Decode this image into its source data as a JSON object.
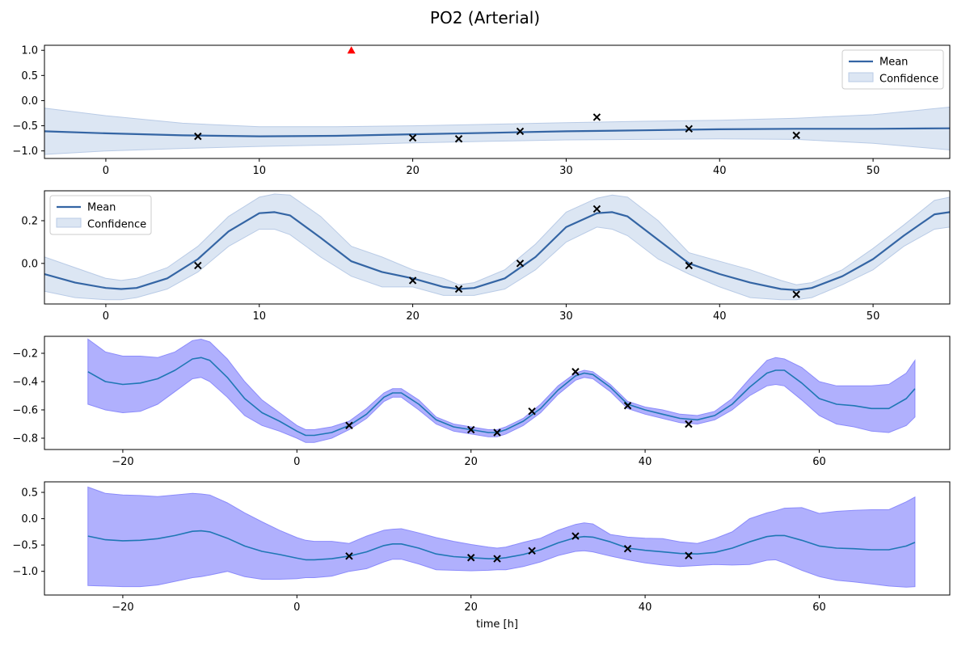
{
  "figure": {
    "title": "PO2 (Arterial)"
  },
  "chart_data": [
    {
      "type": "line",
      "ylim": [
        -1.15,
        1.1
      ],
      "xlim": [
        -4,
        55
      ],
      "xticks": [
        0,
        10,
        20,
        30,
        40,
        50
      ],
      "yticks": [
        1.0,
        0.5,
        0.0,
        -0.5,
        -1.0
      ],
      "ytick_format": 1,
      "legend": {
        "position": "top-right",
        "entries": [
          "Mean",
          "Confidence"
        ]
      },
      "mean_color": "#3465a4",
      "band_color": "#dce6f3",
      "band_edge": "#b9cbe6",
      "mean": {
        "x": [
          -4,
          0,
          5,
          10,
          15,
          20,
          25,
          30,
          35,
          40,
          45,
          50,
          55
        ],
        "y": [
          -0.61,
          -0.65,
          -0.69,
          -0.71,
          -0.7,
          -0.67,
          -0.64,
          -0.61,
          -0.59,
          -0.57,
          -0.56,
          -0.56,
          -0.55
        ]
      },
      "band_upper": [
        -0.15,
        -0.3,
        -0.45,
        -0.52,
        -0.52,
        -0.5,
        -0.47,
        -0.44,
        -0.41,
        -0.39,
        -0.35,
        -0.28,
        -0.13
      ],
      "band_lower": [
        -1.07,
        -1.0,
        -0.95,
        -0.91,
        -0.88,
        -0.84,
        -0.81,
        -0.78,
        -0.77,
        -0.76,
        -0.77,
        -0.85,
        -0.98
      ],
      "observations": {
        "x": [
          6,
          20,
          23,
          27,
          32,
          38,
          45
        ],
        "y": [
          -0.71,
          -0.74,
          -0.76,
          -0.61,
          -0.33,
          -0.56,
          -0.69
        ]
      },
      "marker": {
        "x": 16,
        "y": 1.0,
        "color": "#ff0000"
      }
    },
    {
      "type": "line",
      "ylim": [
        -0.19,
        0.34
      ],
      "xlim": [
        -4,
        55
      ],
      "xticks": [
        0,
        10,
        20,
        30,
        40,
        50
      ],
      "yticks": [
        0.2,
        0.0
      ],
      "ytick_format": 1,
      "legend": {
        "position": "top-left",
        "entries": [
          "Mean",
          "Confidence"
        ]
      },
      "mean_color": "#3465a4",
      "band_color": "#dce6f3",
      "band_edge": "#b9cbe6",
      "mean": {
        "x": [
          -4,
          -2,
          0,
          1,
          2,
          4,
          6,
          8,
          10,
          11,
          12,
          14,
          16,
          18,
          20,
          22,
          23,
          24,
          26,
          28,
          30,
          32,
          33,
          34,
          36,
          38,
          40,
          42,
          44,
          45,
          46,
          48,
          50,
          52,
          54,
          55
        ],
        "y": [
          -0.05,
          -0.09,
          -0.115,
          -0.12,
          -0.115,
          -0.07,
          0.02,
          0.15,
          0.235,
          0.24,
          0.225,
          0.12,
          0.01,
          -0.04,
          -0.07,
          -0.11,
          -0.12,
          -0.115,
          -0.07,
          0.03,
          0.17,
          0.235,
          0.24,
          0.22,
          0.11,
          0.0,
          -0.05,
          -0.09,
          -0.12,
          -0.125,
          -0.115,
          -0.06,
          0.02,
          0.13,
          0.23,
          0.24
        ]
      },
      "band_upper": [
        0.03,
        -0.02,
        -0.07,
        -0.08,
        -0.07,
        -0.02,
        0.08,
        0.22,
        0.31,
        0.325,
        0.32,
        0.22,
        0.08,
        0.03,
        -0.03,
        -0.07,
        -0.1,
        -0.09,
        -0.03,
        0.09,
        0.24,
        0.305,
        0.32,
        0.31,
        0.2,
        0.05,
        0.01,
        -0.03,
        -0.08,
        -0.1,
        -0.09,
        -0.03,
        0.07,
        0.18,
        0.295,
        0.31
      ],
      "band_lower": [
        -0.13,
        -0.16,
        -0.17,
        -0.17,
        -0.16,
        -0.12,
        -0.04,
        0.08,
        0.16,
        0.16,
        0.135,
        0.03,
        -0.06,
        -0.11,
        -0.11,
        -0.15,
        -0.15,
        -0.15,
        -0.12,
        -0.03,
        0.1,
        0.17,
        0.16,
        0.13,
        0.02,
        -0.05,
        -0.11,
        -0.16,
        -0.17,
        -0.17,
        -0.16,
        -0.1,
        -0.03,
        0.08,
        0.16,
        0.17
      ],
      "observations": {
        "x": [
          6,
          20,
          23,
          27,
          32,
          38,
          45
        ],
        "y": [
          -0.01,
          -0.08,
          -0.12,
          0.0,
          0.255,
          -0.01,
          -0.145
        ]
      }
    },
    {
      "type": "line",
      "ylim": [
        -0.88,
        -0.08
      ],
      "xlim": [
        -29,
        75
      ],
      "xticks": [
        -20,
        0,
        20,
        40,
        60
      ],
      "yticks": [
        -0.2,
        -0.4,
        -0.6,
        -0.8
      ],
      "ytick_format": 1,
      "mean_color": "#1f77b4",
      "band_color": "#b0b0fd",
      "band_edge": "#8b8bfb",
      "mean": {
        "x": [
          -24,
          -22,
          -20,
          -18,
          -16,
          -14,
          -12,
          -11,
          -10,
          -8,
          -6,
          -4,
          -2,
          0,
          1,
          2,
          4,
          6,
          8,
          10,
          11,
          12,
          14,
          16,
          18,
          20,
          22,
          23,
          24,
          26,
          28,
          30,
          32,
          33,
          34,
          36,
          38,
          40,
          42,
          44,
          46,
          48,
          50,
          52,
          54,
          55,
          56,
          58,
          60,
          62,
          64,
          66,
          68,
          70,
          71
        ],
        "y": [
          -0.33,
          -0.4,
          -0.42,
          -0.41,
          -0.38,
          -0.32,
          -0.24,
          -0.23,
          -0.25,
          -0.37,
          -0.52,
          -0.62,
          -0.68,
          -0.75,
          -0.78,
          -0.78,
          -0.76,
          -0.71,
          -0.63,
          -0.51,
          -0.48,
          -0.48,
          -0.56,
          -0.67,
          -0.72,
          -0.74,
          -0.76,
          -0.76,
          -0.74,
          -0.68,
          -0.59,
          -0.46,
          -0.36,
          -0.34,
          -0.35,
          -0.44,
          -0.56,
          -0.6,
          -0.63,
          -0.66,
          -0.67,
          -0.64,
          -0.56,
          -0.44,
          -0.34,
          -0.32,
          -0.32,
          -0.41,
          -0.52,
          -0.56,
          -0.57,
          -0.59,
          -0.59,
          -0.52,
          -0.45
        ]
      },
      "band_upper": [
        -0.1,
        -0.19,
        -0.22,
        -0.22,
        -0.23,
        -0.19,
        -0.11,
        -0.1,
        -0.12,
        -0.24,
        -0.4,
        -0.53,
        -0.62,
        -0.71,
        -0.74,
        -0.74,
        -0.72,
        -0.68,
        -0.59,
        -0.48,
        -0.45,
        -0.45,
        -0.53,
        -0.65,
        -0.7,
        -0.72,
        -0.74,
        -0.74,
        -0.72,
        -0.66,
        -0.56,
        -0.43,
        -0.34,
        -0.32,
        -0.33,
        -0.42,
        -0.54,
        -0.58,
        -0.6,
        -0.63,
        -0.64,
        -0.61,
        -0.52,
        -0.38,
        -0.25,
        -0.23,
        -0.24,
        -0.3,
        -0.4,
        -0.43,
        -0.43,
        -0.43,
        -0.42,
        -0.34,
        -0.25
      ],
      "band_lower": [
        -0.56,
        -0.6,
        -0.62,
        -0.61,
        -0.56,
        -0.47,
        -0.38,
        -0.37,
        -0.4,
        -0.51,
        -0.64,
        -0.71,
        -0.75,
        -0.8,
        -0.83,
        -0.83,
        -0.8,
        -0.74,
        -0.66,
        -0.54,
        -0.51,
        -0.51,
        -0.6,
        -0.7,
        -0.75,
        -0.77,
        -0.79,
        -0.79,
        -0.77,
        -0.71,
        -0.62,
        -0.49,
        -0.39,
        -0.37,
        -0.38,
        -0.47,
        -0.59,
        -0.63,
        -0.66,
        -0.69,
        -0.7,
        -0.67,
        -0.6,
        -0.5,
        -0.43,
        -0.42,
        -0.43,
        -0.53,
        -0.64,
        -0.7,
        -0.72,
        -0.75,
        -0.76,
        -0.71,
        -0.65
      ],
      "observations": {
        "x": [
          6,
          20,
          23,
          27,
          32,
          38,
          45
        ],
        "y": [
          -0.71,
          -0.74,
          -0.76,
          -0.61,
          -0.33,
          -0.57,
          -0.7
        ]
      }
    },
    {
      "type": "line",
      "ylim": [
        -1.45,
        0.7
      ],
      "xlim": [
        -29,
        75
      ],
      "xticks": [
        -20,
        0,
        20,
        40,
        60
      ],
      "yticks": [
        0.5,
        0.0,
        -0.5,
        -1.0
      ],
      "ytick_format": 1,
      "xlabel": "time [h]",
      "mean_color": "#1f77b4",
      "band_color": "#b0b0fd",
      "band_edge": "#8b8bfb",
      "mean": {
        "x": [
          -24,
          -22,
          -20,
          -18,
          -16,
          -14,
          -12,
          -11,
          -10,
          -8,
          -6,
          -4,
          -2,
          0,
          1,
          2,
          4,
          6,
          8,
          10,
          11,
          12,
          14,
          16,
          18,
          20,
          22,
          23,
          24,
          26,
          28,
          30,
          32,
          33,
          34,
          36,
          38,
          40,
          42,
          44,
          46,
          48,
          50,
          52,
          54,
          55,
          56,
          58,
          60,
          62,
          64,
          66,
          68,
          70,
          71
        ],
        "y": [
          -0.33,
          -0.4,
          -0.42,
          -0.41,
          -0.38,
          -0.32,
          -0.24,
          -0.23,
          -0.25,
          -0.37,
          -0.52,
          -0.62,
          -0.68,
          -0.75,
          -0.78,
          -0.78,
          -0.76,
          -0.71,
          -0.63,
          -0.51,
          -0.48,
          -0.48,
          -0.56,
          -0.67,
          -0.72,
          -0.74,
          -0.76,
          -0.76,
          -0.74,
          -0.68,
          -0.59,
          -0.46,
          -0.36,
          -0.34,
          -0.35,
          -0.44,
          -0.56,
          -0.6,
          -0.63,
          -0.66,
          -0.67,
          -0.64,
          -0.56,
          -0.44,
          -0.34,
          -0.32,
          -0.32,
          -0.41,
          -0.52,
          -0.56,
          -0.57,
          -0.59,
          -0.59,
          -0.52,
          -0.45
        ]
      },
      "band_upper": [
        0.6,
        0.48,
        0.45,
        0.44,
        0.42,
        0.45,
        0.48,
        0.47,
        0.45,
        0.3,
        0.11,
        -0.06,
        -0.22,
        -0.36,
        -0.41,
        -0.43,
        -0.43,
        -0.47,
        -0.33,
        -0.22,
        -0.2,
        -0.19,
        -0.27,
        -0.36,
        -0.43,
        -0.49,
        -0.54,
        -0.56,
        -0.54,
        -0.45,
        -0.37,
        -0.22,
        -0.11,
        -0.08,
        -0.1,
        -0.3,
        -0.35,
        -0.37,
        -0.38,
        -0.44,
        -0.47,
        -0.38,
        -0.25,
        0.0,
        0.11,
        0.15,
        0.2,
        0.21,
        0.1,
        0.14,
        0.16,
        0.17,
        0.17,
        0.32,
        0.41
      ],
      "band_lower": [
        -1.27,
        -1.28,
        -1.29,
        -1.29,
        -1.26,
        -1.19,
        -1.12,
        -1.1,
        -1.07,
        -1.0,
        -1.1,
        -1.15,
        -1.15,
        -1.14,
        -1.12,
        -1.12,
        -1.09,
        -1.0,
        -0.95,
        -0.82,
        -0.77,
        -0.77,
        -0.86,
        -0.97,
        -0.98,
        -0.99,
        -0.98,
        -0.97,
        -0.97,
        -0.91,
        -0.82,
        -0.7,
        -0.62,
        -0.61,
        -0.63,
        -0.71,
        -0.78,
        -0.84,
        -0.88,
        -0.91,
        -0.89,
        -0.87,
        -0.88,
        -0.87,
        -0.79,
        -0.78,
        -0.84,
        -0.98,
        -1.1,
        -1.17,
        -1.2,
        -1.24,
        -1.28,
        -1.3,
        -1.29
      ],
      "observations": {
        "x": [
          6,
          20,
          23,
          27,
          32,
          38,
          45
        ],
        "y": [
          -0.71,
          -0.74,
          -0.76,
          -0.61,
          -0.33,
          -0.57,
          -0.7
        ]
      }
    }
  ]
}
